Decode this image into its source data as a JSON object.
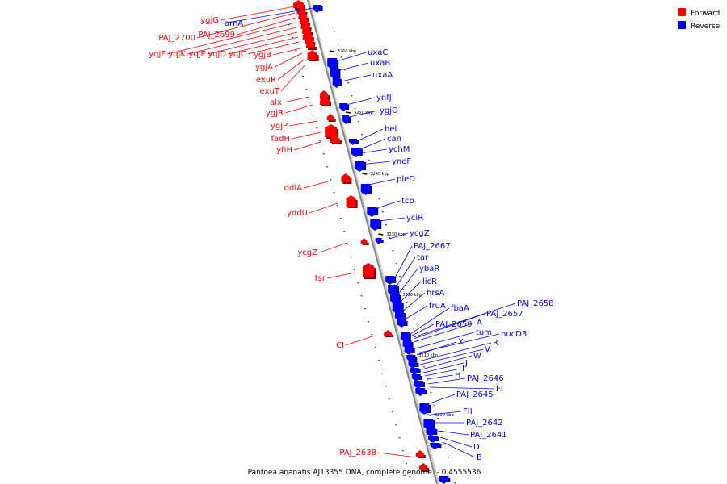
{
  "caption": "Pantoea ananatis AJ13355 DNA, complete genome. - 0.4555536",
  "legend": [
    {
      "label": "Forward",
      "color": "#ff0000"
    },
    {
      "label": "Reverse",
      "color": "#0000ff"
    }
  ],
  "colors": {
    "forward": "#ff0000",
    "reverse": "#0000ff",
    "backbone": "#888888"
  },
  "ticks": [
    "3260 kbp",
    "3250 kbp",
    "3240 kbp",
    "3230 kbp",
    "3220 kbp",
    "3210 kbp",
    "3200 kbp"
  ],
  "forward_labels": [
    "ygjG",
    "PAJ_2700",
    "PAJ_2699",
    "yqjF",
    "yqjK",
    "yqjE",
    "yqjD",
    "yqjC",
    "ygjB",
    "ygjA",
    "exuR",
    "exuT",
    "alx",
    "ygjR",
    "ygjP",
    "fadH",
    "yfiH",
    "ddlA",
    "yddU",
    "ycgZ",
    "tsr",
    "CI",
    "PAJ_2638"
  ],
  "reverse_labels": [
    "arnA",
    "uxaC",
    "uxaB",
    "uxaA",
    "ynfJ",
    "ygjO",
    "hel",
    "can",
    "ychM",
    "yneF",
    "pleD",
    "tcp",
    "yciR",
    "ycgZ",
    "PAJ_2667",
    "tar",
    "ybaR",
    "licR",
    "hrsA",
    "fruA",
    "fbaA",
    "PAJ_2658",
    "PAJ_2657",
    "A",
    "PAJ_2659",
    "tum",
    "nucD3",
    "X",
    "R",
    "V",
    "W",
    "J",
    "I",
    "H",
    "PAJ_2646",
    "FI",
    "PAJ_2645",
    "FII",
    "PAJ_2642",
    "PAJ_2641",
    "D",
    "B"
  ]
}
